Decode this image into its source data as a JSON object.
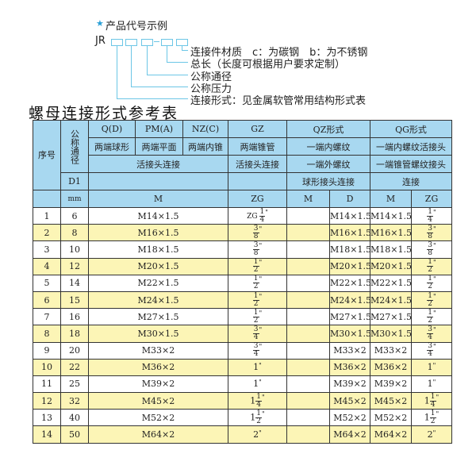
{
  "diagram": {
    "title": "产品代号示例",
    "code_prefix": "JR",
    "labels": [
      "连接件材质　c：为碳钢　b：为不锈钢",
      "总长（长度可根据用户要求定制）",
      "公称通径",
      "公称压力",
      "连接形式：见金属软管常用结构形式表"
    ],
    "accent_color": "#6cc6e6"
  },
  "table_title": "螺母连接形式参考表",
  "header": {
    "seq": "序号",
    "nominal": "公称通径",
    "qd": "Q(D)",
    "pm": "PM(A)",
    "nz": "NZ(C)",
    "gz": "GZ",
    "qz": "QZ形式",
    "qg": "QG形式",
    "qd_desc": "两端球形",
    "pm_desc": "两端平面",
    "nz_desc": "两端内锥",
    "gz_desc": "两端锥管",
    "qz_desc1": "一端内螺纹",
    "qg_desc1": "一端内螺纹活接头",
    "union": "活接头连接",
    "gz_union": "活接头连接",
    "qz_desc2": "一端外螺纹",
    "qg_desc2": "一端锥管螺纹接头",
    "d1": "D1",
    "qz_desc3": "球形接头连接",
    "qg_desc3": "连接",
    "mm": "mm",
    "m": "M",
    "zg": "ZG",
    "qz_m": "M",
    "qz_d": "D",
    "qg_m": "M",
    "qg_zg": "ZG"
  },
  "rows": [
    {
      "no": "1",
      "dn": "6",
      "m": "M14×1.5",
      "zg": {
        "pre": "ZG",
        "w": "",
        "n": "1",
        "d": "4"
      },
      "qzd": "M14×1.5",
      "qgm": "M14×1.5",
      "qgzg": {
        "w": "",
        "n": "1",
        "d": "4"
      }
    },
    {
      "no": "2",
      "dn": "8",
      "m": "M16×1.5",
      "zg": {
        "w": "",
        "n": "3",
        "d": "8"
      },
      "qzd": "M16×1.5",
      "qgm": "M16×1.5",
      "qgzg": {
        "w": "",
        "n": "3",
        "d": "8"
      }
    },
    {
      "no": "3",
      "dn": "10",
      "m": "M18×1.5",
      "zg": {
        "w": "",
        "n": "3",
        "d": "8"
      },
      "qzd": "M18×1.5",
      "qgm": "M18×1.5",
      "qgzg": {
        "w": "",
        "n": "3",
        "d": "8"
      }
    },
    {
      "no": "4",
      "dn": "12",
      "m": "M20×1.5",
      "zg": {
        "w": "",
        "n": "1",
        "d": "2"
      },
      "qzd": "M20×1.5",
      "qgm": "M20×1.5",
      "qgzg": {
        "w": "",
        "n": "1",
        "d": "2"
      }
    },
    {
      "no": "5",
      "dn": "14",
      "m": "M22×1.5",
      "zg": {
        "w": "",
        "n": "1",
        "d": "2"
      },
      "qzd": "M22×1.5",
      "qgm": "M22×1.5",
      "qgzg": {
        "w": "",
        "n": "1",
        "d": "2"
      }
    },
    {
      "no": "6",
      "dn": "15",
      "m": "M24×1.5",
      "zg": {
        "w": "",
        "n": "1",
        "d": "2"
      },
      "qzd": "M24×1.5",
      "qgm": "M24×1.5",
      "qgzg": {
        "w": "",
        "n": "1",
        "d": "2"
      }
    },
    {
      "no": "7",
      "dn": "16",
      "m": "M27×1.5",
      "zg": {
        "w": "",
        "n": "1",
        "d": "2"
      },
      "qzd": "M27×1.5",
      "qgm": "M27×1.5",
      "qgzg": {
        "w": "",
        "n": "1",
        "d": "2"
      }
    },
    {
      "no": "8",
      "dn": "18",
      "m": "M30×1.5",
      "zg": {
        "w": "",
        "n": "3",
        "d": "4"
      },
      "qzd": "M30×1.5",
      "qgm": "M30×1.5",
      "qgzg": {
        "w": "",
        "n": "3",
        "d": "4"
      }
    },
    {
      "no": "9",
      "dn": "20",
      "m": "M33×2",
      "zg": {
        "w": "",
        "n": "3",
        "d": "4"
      },
      "qzd": "M33×2",
      "qgm": "M33×2",
      "qgzg": {
        "w": "",
        "n": "3",
        "d": "4"
      }
    },
    {
      "no": "10",
      "dn": "22",
      "m": "M36×2",
      "zg": {
        "w": "1"
      },
      "qzd": "M36×2",
      "qgm": "M36×2",
      "qgzg": {
        "w": "1"
      }
    },
    {
      "no": "11",
      "dn": "25",
      "m": "M39×2",
      "zg": {
        "w": "1"
      },
      "qzd": "M39×2",
      "qgm": "M39×2",
      "qgzg": {
        "w": "1"
      }
    },
    {
      "no": "12",
      "dn": "32",
      "m": "M45×2",
      "zg": {
        "w": "1",
        "n": "1",
        "d": "4"
      },
      "qzd": "M45×2",
      "qgm": "M45×2",
      "qgzg": {
        "w": "1",
        "n": "1",
        "d": "4"
      }
    },
    {
      "no": "13",
      "dn": "40",
      "m": "M52×2",
      "zg": {
        "w": "1",
        "n": "1",
        "d": "2"
      },
      "qzd": "M52×2",
      "qgm": "M52×2",
      "qgzg": {
        "w": "1",
        "n": "1",
        "d": "2"
      }
    },
    {
      "no": "14",
      "dn": "50",
      "m": "M64×2",
      "zg": {
        "w": "2"
      },
      "qzd": "M64×2",
      "qgm": "M64×2",
      "qgzg": {
        "w": "2"
      }
    }
  ],
  "colors": {
    "header_bg": "#a8d8f0",
    "row_alt_bg": "#fcf5b6",
    "star": "#2a9fd6"
  }
}
